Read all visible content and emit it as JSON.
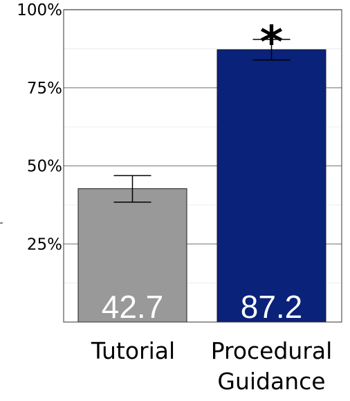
{
  "chart_data": {
    "type": "bar",
    "categories": [
      "Tutorial",
      "Procedural Guidance"
    ],
    "category_lines": [
      [
        "Tutorial"
      ],
      [
        "Procedural",
        "Guidance"
      ]
    ],
    "values": [
      42.7,
      87.2
    ],
    "data_labels": [
      "42.7",
      "87.2"
    ],
    "error_bars": [
      [
        38.4,
        46.9
      ],
      [
        83.9,
        90.5
      ]
    ],
    "bar_colors": [
      "#999999",
      "#0a2279"
    ],
    "ylim": [
      0,
      100
    ],
    "yticks": [
      25,
      50,
      75,
      100
    ],
    "ytick_labels": [
      "25%",
      "50%",
      "75%",
      "100%"
    ],
    "minor_grid": [
      12.5,
      37.5,
      62.5,
      87.5
    ],
    "grid": true,
    "annotations": [
      {
        "text": "*",
        "category": "Procedural Guidance"
      }
    ],
    "title": "",
    "xlabel": "",
    "ylabel": ""
  }
}
